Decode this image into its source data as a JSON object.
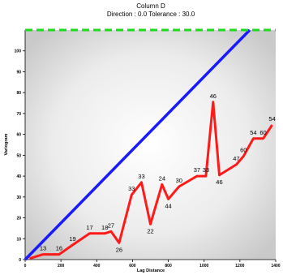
{
  "chart_data": {
    "type": "line",
    "title": "Column D",
    "subtitle": "Direction : 0.0   Tolerance : 30.0",
    "xlabel": "Lag Distance",
    "ylabel": "Variogram",
    "xlim": [
      0,
      1400
    ],
    "ylim": [
      0,
      110
    ],
    "x_ticks": [
      "0",
      "200",
      "400",
      "600",
      "800",
      "1000",
      "1200",
      "1400"
    ],
    "y_ticks": [
      "0",
      "10",
      "20",
      "30",
      "40",
      "50",
      "60",
      "70",
      "80",
      "90",
      "100"
    ],
    "series": [
      {
        "kind": "experimental",
        "color": "#ff1a1a",
        "points": [
          {
            "x": 25,
            "y": 0.5,
            "label": ""
          },
          {
            "x": 100,
            "y": 2.5,
            "label": "13"
          },
          {
            "x": 190,
            "y": 2.5,
            "label": "16"
          },
          {
            "x": 265,
            "y": 7,
            "label": "19"
          },
          {
            "x": 360,
            "y": 12.5,
            "label": "17"
          },
          {
            "x": 445,
            "y": 12.5,
            "label": "18"
          },
          {
            "x": 480,
            "y": 13.5,
            "label": "27"
          },
          {
            "x": 525,
            "y": 8,
            "label": "26"
          },
          {
            "x": 595,
            "y": 31,
            "label": "33"
          },
          {
            "x": 650,
            "y": 37,
            "label": "33"
          },
          {
            "x": 700,
            "y": 17,
            "label": "22"
          },
          {
            "x": 765,
            "y": 36,
            "label": "24"
          },
          {
            "x": 800,
            "y": 29,
            "label": "44"
          },
          {
            "x": 860,
            "y": 35,
            "label": "30"
          },
          {
            "x": 960,
            "y": 40,
            "label": "37"
          },
          {
            "x": 1010,
            "y": 40,
            "label": "33"
          },
          {
            "x": 1050,
            "y": 75.5,
            "label": "46"
          },
          {
            "x": 1085,
            "y": 40.5,
            "label": "46"
          },
          {
            "x": 1180,
            "y": 45.5,
            "label": "47"
          },
          {
            "x": 1220,
            "y": 49.5,
            "label": "60"
          },
          {
            "x": 1275,
            "y": 58,
            "label": "54"
          },
          {
            "x": 1330,
            "y": 58,
            "label": "60"
          },
          {
            "x": 1380,
            "y": 64.5,
            "label": "54"
          }
        ]
      },
      {
        "kind": "model",
        "color": "#1a1aff",
        "points": [
          {
            "x": 0,
            "y": 0
          },
          {
            "x": 1255,
            "y": 110
          }
        ]
      },
      {
        "kind": "sill",
        "color": "#1adc1a",
        "style": "dashed",
        "points": [
          {
            "x": 0,
            "y": 110
          },
          {
            "x": 1400,
            "y": 110
          }
        ]
      }
    ],
    "grid": false
  }
}
